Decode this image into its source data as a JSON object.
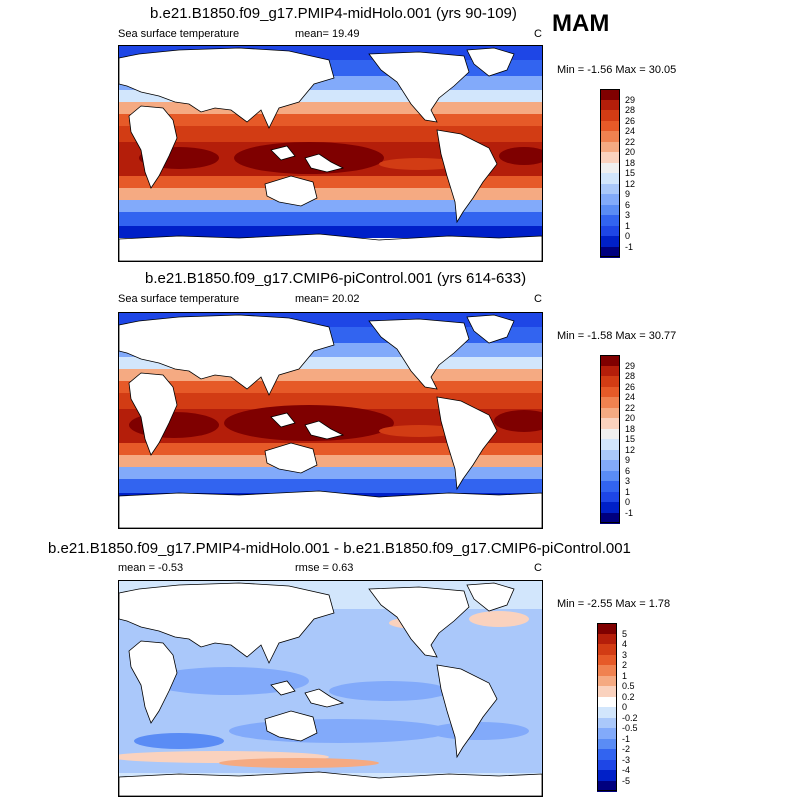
{
  "season": "MAM",
  "colors": {
    "sst_scale": [
      "#00007f",
      "#0020c8",
      "#1e46e6",
      "#3264f0",
      "#5a8cf5",
      "#82aafa",
      "#aac8fa",
      "#d2e6fc",
      "#f0f0f0",
      "#fad2be",
      "#f5aa82",
      "#f08250",
      "#e65a28",
      "#d23c14",
      "#b41e0a",
      "#7f0000"
    ],
    "diff_scale": [
      "#00007f",
      "#0020c8",
      "#1e46e6",
      "#3264f0",
      "#5a8cf5",
      "#82aafa",
      "#aac8fa",
      "#d2e6fc",
      "#ffffff",
      "#fad2be",
      "#f5aa82",
      "#f08250",
      "#e65a28",
      "#d23c14",
      "#b41e0a",
      "#7f0000"
    ],
    "land": "#ffffff"
  },
  "panels": [
    {
      "title": "b.e21.B1850.f09_g17.PMIP4-midHolo.001 (yrs 90-109)",
      "variable": "Sea surface temperature",
      "stat_left": "mean=  19.49",
      "units": "C",
      "minmax": "Min =  -1.56 Max =  30.05",
      "levels": [
        "29",
        "28",
        "26",
        "24",
        "22",
        "20",
        "18",
        "15",
        "12",
        "9",
        "6",
        "3",
        "1",
        "0",
        "-1"
      ]
    },
    {
      "title": "b.e21.B1850.f09_g17.CMIP6-piControl.001 (yrs 614-633)",
      "variable": "Sea surface temperature",
      "stat_left": "mean=  20.02",
      "units": "C",
      "minmax": "Min =  -1.58 Max =  30.77",
      "levels": [
        "29",
        "28",
        "26",
        "24",
        "22",
        "20",
        "18",
        "15",
        "12",
        "9",
        "6",
        "3",
        "1",
        "0",
        "-1"
      ]
    },
    {
      "title": "b.e21.B1850.f09_g17.PMIP4-midHolo.001 - b.e21.B1850.f09_g17.CMIP6-piControl.001",
      "variable": "mean =  -0.53",
      "stat_left": "rmse =   0.63",
      "units": "C",
      "minmax": "Min =  -2.55 Max =   1.78",
      "levels": [
        "5",
        "4",
        "3",
        "2",
        "1",
        "0.5",
        "0.2",
        "0",
        "-0.2",
        "-0.5",
        "-1",
        "-2",
        "-3",
        "-4",
        "-5"
      ]
    }
  ]
}
